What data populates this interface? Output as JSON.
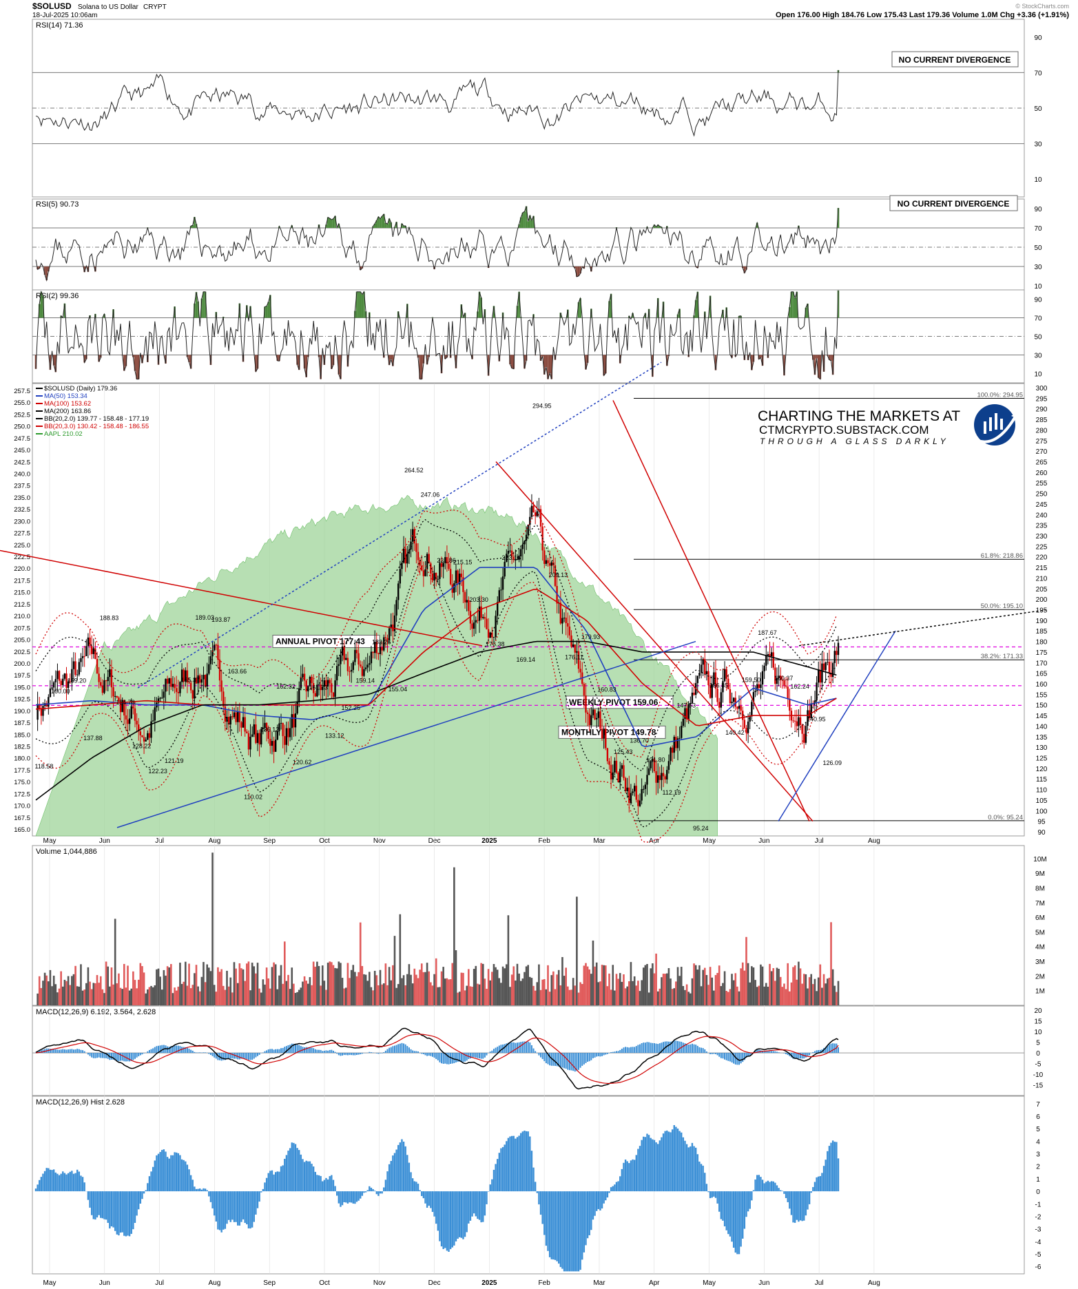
{
  "header": {
    "symbol": "$SOLUSD",
    "name": "Solana to US Dollar",
    "exchange": "CRYPT",
    "date": "18-Jul-2025 10:06am",
    "quote": "Open 176.00  High 184.76  Low 175.43  Last 179.36  Volume 1.0M  Chg +3.36 (+1.91%)",
    "watermark": "© StockCharts.com"
  },
  "months": [
    "May",
    "Jun",
    "Jul",
    "Aug",
    "Sep",
    "Oct",
    "Nov",
    "Dec",
    "2025",
    "Feb",
    "Mar",
    "Apr",
    "May",
    "Jun",
    "Jul",
    "Aug"
  ],
  "logo": {
    "line1": "CHARTING THE MARKETS AT",
    "line2": "CTMCRYPTO.SUBSTACK.COM",
    "line3": "THROUGH A GLASS DARKLY"
  },
  "colors": {
    "up": "#000000",
    "down": "#d40000",
    "green_fill": "#9fd49a",
    "blue": "#1f3fbf",
    "red": "#d00000",
    "magenta": "#e000e0",
    "macd_hist": "#3b8fd6"
  },
  "panels": {
    "rsi14": {
      "title": "RSI(14) 71.36",
      "note": "NO CURRENT DIVERGENCE",
      "ticks": [
        "90",
        "70",
        "50",
        "30",
        "10"
      ],
      "range": [
        0,
        100
      ],
      "current": 71.36
    },
    "rsi5": {
      "title": "RSI(5) 90.73",
      "note": "NO CURRENT DIVERGENCE",
      "ticks": [
        "90",
        "70",
        "50",
        "30",
        "10"
      ],
      "range": [
        0,
        100
      ],
      "current": 90.73
    },
    "rsi2": {
      "title": "RSI(2) 99.36",
      "ticks": [
        "90",
        "70",
        "50",
        "30",
        "10"
      ],
      "range": [
        0,
        100
      ],
      "current": 99.36
    },
    "price": {
      "legend": [
        {
          "text": "$SOLUSD (Daily) 179.36",
          "color": "#000000"
        },
        {
          "text": "MA(50) 153.34",
          "color": "#1f3fbf"
        },
        {
          "text": "MA(100) 153.62",
          "color": "#d00000"
        },
        {
          "text": "MA(200) 163.86",
          "color": "#000000"
        },
        {
          "text": "BB(20,2.0) 139.77 - 158.48 - 177.19",
          "color": "#000000"
        },
        {
          "text": "BB(20,3.0) 130.42 - 158.48 - 186.55",
          "color": "#d00000"
        },
        {
          "text": "AAPL 210.02",
          "color": "#2c9a2c"
        }
      ],
      "left_ticks": [
        "257.5",
        "255.0",
        "252.5",
        "250.0",
        "247.5",
        "245.0",
        "242.5",
        "240.0",
        "237.5",
        "235.0",
        "232.5",
        "230.0",
        "227.5",
        "225.0",
        "222.5",
        "220.0",
        "217.5",
        "215.0",
        "212.5",
        "210.0",
        "207.5",
        "205.0",
        "202.5",
        "200.0",
        "197.5",
        "195.0",
        "192.5",
        "190.0",
        "187.5",
        "185.0",
        "182.5",
        "180.0",
        "177.5",
        "175.0",
        "172.5",
        "170.0",
        "167.5",
        "165.0"
      ],
      "right_ticks": [
        "300",
        "295",
        "290",
        "285",
        "280",
        "275",
        "270",
        "265",
        "260",
        "255",
        "250",
        "245",
        "240",
        "235",
        "230",
        "225",
        "220",
        "215",
        "210",
        "205",
        "200",
        "195",
        "190",
        "185",
        "180",
        "175",
        "170",
        "165",
        "160",
        "155",
        "150",
        "145",
        "140",
        "135",
        "130",
        "125",
        "120",
        "115",
        "110",
        "105",
        "100",
        "95",
        "90"
      ],
      "pivots": [
        {
          "label": "ANNUAL PIVOT 177.43",
          "value": 177.43
        },
        {
          "label": "WEEKLY PIVOT 159.06",
          "value": 159.06
        },
        {
          "label": "MONTHLY PIVOT 149.78",
          "value": 149.78
        }
      ],
      "fib_levels": [
        {
          "label": "100.0%: 294.95",
          "value": 294.95
        },
        {
          "label": "61.8%: 218.86",
          "value": 218.86
        },
        {
          "label": "50.0%: 195.10",
          "value": 195.1
        },
        {
          "label": "38.2%: 171.33",
          "value": 171.33
        },
        {
          "label": "0.0%: 95.24",
          "value": 95.24
        }
      ],
      "annotations": [
        "118.58",
        "160.00",
        "159.20",
        "137.88",
        "188.83",
        "154.78",
        "128.22",
        "122.23",
        "121.19",
        "165.37",
        "189.03",
        "193.87",
        "163.66",
        "110.02",
        "136.12",
        "162.32",
        "120.62",
        "161.73",
        "133.12",
        "152.25",
        "159.14",
        "183.26",
        "155.04",
        "264.52",
        "247.06",
        "221.86",
        "215.15",
        "203.30",
        "176.38",
        "223.16",
        "169.14",
        "294.95",
        "209.13",
        "176.11",
        "179.93",
        "160.83",
        "125.43",
        "136.70",
        "121.80",
        "112.19",
        "147.53",
        "95.24",
        "156.85",
        "140.42",
        "159.50",
        "187.67",
        "160.37",
        "162.24",
        "140.95",
        "126.09"
      ]
    },
    "volume": {
      "title": "Volume 1,044,886",
      "ticks": [
        "10M",
        "9M",
        "8M",
        "7M",
        "6M",
        "5M",
        "4M",
        "3M",
        "2M",
        "1M"
      ]
    },
    "macd": {
      "title": "MACD(12,26,9) 6.192, 3.564, 2.628",
      "ticks": [
        "20",
        "15",
        "10",
        "5",
        "0",
        "-5",
        "-10",
        "-15"
      ],
      "macd": 6.192,
      "signal": 3.564,
      "hist": 2.628
    },
    "macd_hist": {
      "title": "MACD(12,26,9) Hist 2.628",
      "ticks": [
        "7",
        "6",
        "5",
        "4",
        "3",
        "2",
        "1",
        "0",
        "-1",
        "-2",
        "-3",
        "-4",
        "-5",
        "-6"
      ]
    }
  },
  "chart_data": {
    "type": "line",
    "title": "$SOLUSD (Daily) 179.36",
    "x": [
      "2024-05-01",
      "2024-06-01",
      "2024-07-01",
      "2024-08-01",
      "2024-09-01",
      "2024-10-01",
      "2024-11-01",
      "2024-12-01",
      "2025-01-01",
      "2025-02-01",
      "2025-03-01",
      "2025-04-01",
      "2025-05-01",
      "2025-06-01",
      "2025-07-01",
      "2025-07-18"
    ],
    "series": [
      {
        "name": "$SOLUSD",
        "values": [
          150,
          165,
          140,
          170,
          132,
          150,
          168,
          230,
          195,
          225,
          145,
          105,
          150,
          160,
          155,
          179.36
        ]
      },
      {
        "name": "MA(50)",
        "values": [
          150,
          152,
          150,
          150,
          145,
          143,
          150,
          195,
          215,
          215,
          185,
          130,
          135,
          158,
          150,
          153.34
        ]
      },
      {
        "name": "MA(100)",
        "values": [
          148,
          150,
          152,
          150,
          150,
          150,
          150,
          175,
          195,
          205,
          190,
          160,
          140,
          145,
          145,
          153.62
        ]
      },
      {
        "name": "MA(200)",
        "values": [
          105,
          125,
          140,
          150,
          150,
          152,
          155,
          165,
          175,
          180,
          180,
          175,
          175,
          175,
          168,
          163.86
        ]
      }
    ],
    "ylim": [
      90,
      300
    ],
    "legend": "top-left"
  }
}
